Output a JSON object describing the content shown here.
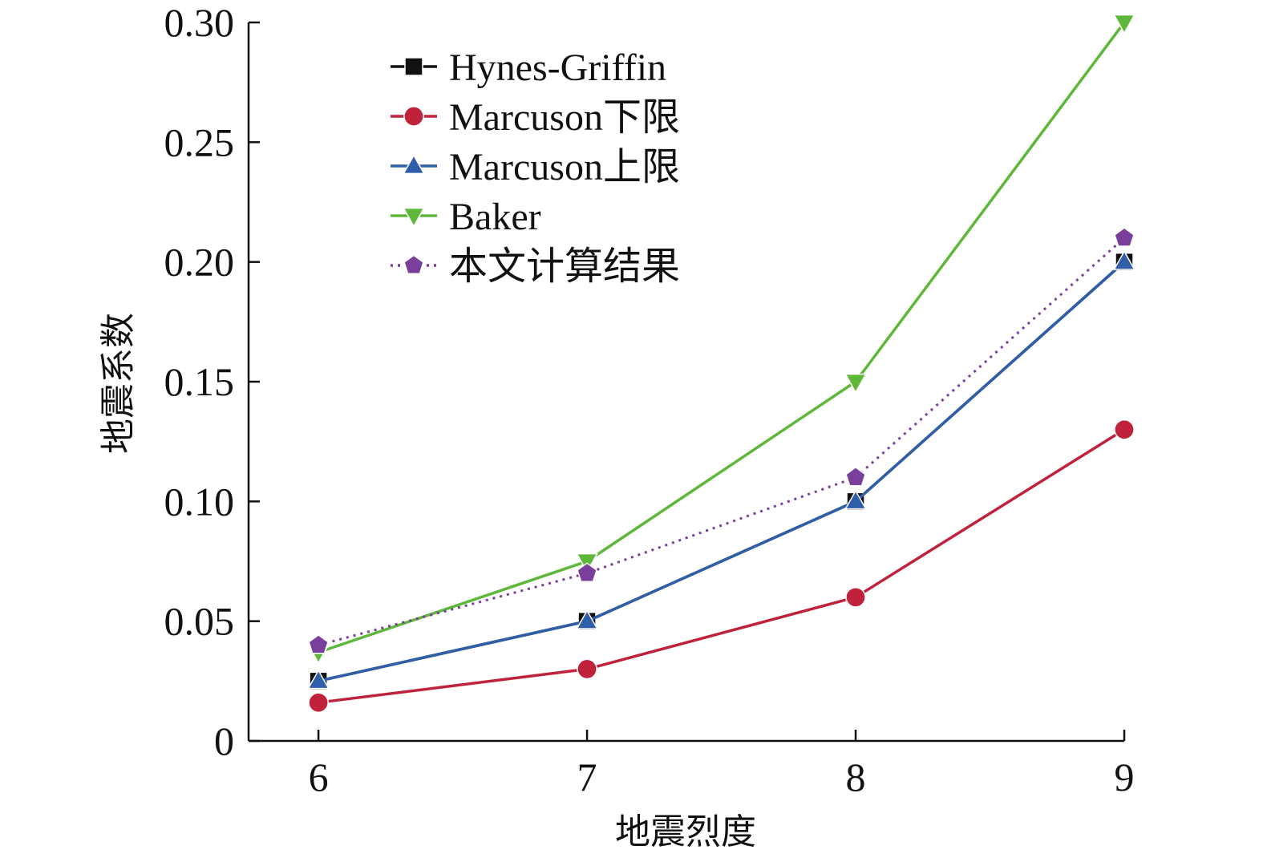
{
  "chart_data": {
    "type": "line",
    "title": "",
    "xlabel": "地震烈度",
    "ylabel": "地震系数",
    "x": [
      6,
      7,
      8,
      9
    ],
    "x_tick_labels": [
      "6",
      "7",
      "8",
      "9"
    ],
    "y_ticks": [
      0,
      0.05,
      0.1,
      0.15,
      0.2,
      0.25,
      0.3
    ],
    "y_tick_labels": [
      "0",
      "0.05",
      "0.10",
      "0.15",
      "0.20",
      "0.25",
      "0.30"
    ],
    "ylim": [
      0,
      0.3
    ],
    "grid": false,
    "legend_position": "top-left",
    "series": [
      {
        "name": "Hynes-Griffin",
        "values": [
          0.025,
          0.05,
          0.1,
          0.2
        ],
        "color": "#111111",
        "marker": "square",
        "dashed": false
      },
      {
        "name": "Marcuson下限",
        "values": [
          0.016,
          0.03,
          0.06,
          0.13
        ],
        "color": "#c0223b",
        "marker": "circle",
        "dashed": false
      },
      {
        "name": "Marcuson上限",
        "values": [
          0.025,
          0.05,
          0.1,
          0.2
        ],
        "color": "#2f5fa8",
        "marker": "triangle-up",
        "dashed": false
      },
      {
        "name": "Baker",
        "values": [
          0.037,
          0.075,
          0.15,
          0.3
        ],
        "color": "#5db83a",
        "marker": "triangle-down",
        "dashed": false
      },
      {
        "name": "本文计算结果",
        "values": [
          0.04,
          0.07,
          0.11,
          0.21
        ],
        "color": "#7a3f9a",
        "marker": "pentagon",
        "dashed": true
      }
    ]
  }
}
